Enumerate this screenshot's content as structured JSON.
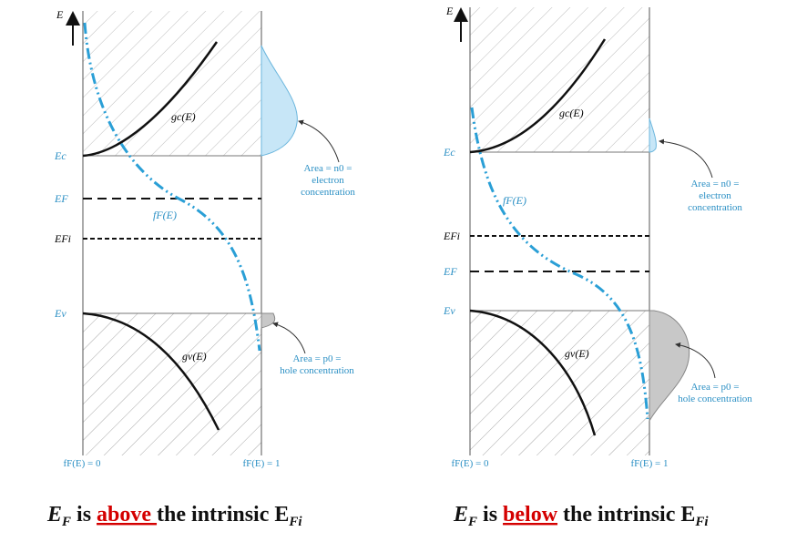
{
  "left_panel": {
    "axis_label": "E",
    "gc_label": "gc(E)",
    "gv_label": "gv(E)",
    "fF_label": "fF(E)",
    "Ec": "Ec",
    "EF": "EF",
    "EFi": "EFi",
    "Ev": "Ev",
    "area_n_line1": "Area = n0 =",
    "area_n_line2": "electron",
    "area_n_line3": "concentration",
    "area_p_line1": "Area = p0 =",
    "area_p_line2": "hole concentration",
    "f0": "fF(E) = 0",
    "f1": "fF(E) = 1"
  },
  "right_panel": {
    "axis_label": "E",
    "gc_label": "gc(E)",
    "gv_label": "gv(E)",
    "fF_label": "fF(E)",
    "Ec": "Ec",
    "EF": "EF",
    "EFi": "EFi",
    "Ev": "Ev",
    "area_n_line1": "Area = n0 =",
    "area_n_line2": "electron",
    "area_n_line3": "concentration",
    "area_p_line1": "Area = p0 =",
    "area_p_line2": "hole concentration",
    "f0": "fF(E) = 0",
    "f1": "fF(E) = 1"
  },
  "captions": {
    "left": {
      "pre": "E",
      "sub_pre": "F",
      "is": " is ",
      "keyword": "above ",
      "post": "the intrinsic E",
      "sub_post": "Fi"
    },
    "right": {
      "pre": "E",
      "sub_pre": "F",
      "is": " is ",
      "keyword": "below",
      "post": " the intrinsic E",
      "sub_post": "Fi"
    }
  },
  "colors": {
    "accent_blue": "#2a9fd6",
    "fill_blue": "#c7e6f7",
    "fill_gray": "#c8c8c8",
    "keyword_red": "#d40000"
  }
}
